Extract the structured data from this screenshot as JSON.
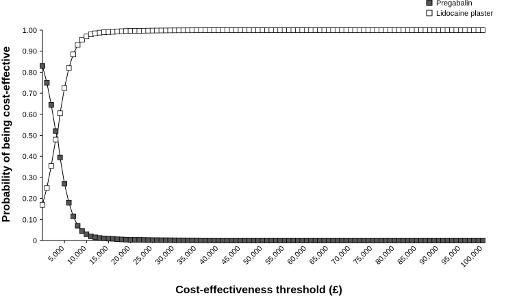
{
  "chart_data": {
    "type": "line",
    "title": "",
    "xlabel": "Cost-effectiveness threshold (£)",
    "ylabel": "Probability of being cost-effective",
    "xlim": [
      0,
      100000
    ],
    "ylim": [
      0,
      1
    ],
    "x_ticks": [
      5000,
      10000,
      15000,
      20000,
      25000,
      30000,
      35000,
      40000,
      45000,
      50000,
      55000,
      60000,
      65000,
      70000,
      75000,
      80000,
      85000,
      90000,
      95000,
      100000
    ],
    "x_tick_labels": [
      "5,000",
      "10,000",
      "15,000",
      "20,000",
      "25,000",
      "30,000",
      "35,000",
      "40,000",
      "45,000",
      "50,000",
      "55,000",
      "60,000",
      "65,000",
      "70,000",
      "75,000",
      "80,000",
      "85,000",
      "90,000",
      "95,000",
      "100,000"
    ],
    "y_ticks": [
      0,
      0.1,
      0.2,
      0.3,
      0.4,
      0.5,
      0.6,
      0.7,
      0.8,
      0.9,
      1.0
    ],
    "y_tick_labels": [
      "0",
      "0.10",
      "0.20",
      "0.30",
      "0.40",
      "0.50",
      "0.60",
      "0.70",
      "0.80",
      "0.90",
      "1.00"
    ],
    "grid": false,
    "legend_position": "top-right",
    "series": [
      {
        "name": "Pregabalin",
        "marker": "filled-square",
        "color": "#555555",
        "x": [
          0,
          1000,
          2000,
          3000,
          3500,
          4000,
          5000,
          6000,
          7000,
          8000,
          9000,
          10000,
          11000,
          12000,
          13000,
          14000,
          15000,
          16000,
          17000,
          18000,
          19000,
          20000,
          22000,
          25000,
          30000,
          40000,
          50000,
          60000,
          70000,
          80000,
          90000,
          100000
        ],
        "y": [
          0.83,
          0.75,
          0.645,
          0.52,
          0.48,
          0.395,
          0.27,
          0.18,
          0.115,
          0.07,
          0.045,
          0.03,
          0.02,
          0.015,
          0.012,
          0.01,
          0.009,
          0.008,
          0.006,
          0.005,
          0.004,
          0.003,
          0.003,
          0.002,
          0.001,
          0,
          0,
          0,
          0,
          0,
          0,
          0
        ]
      },
      {
        "name": "Lidocaine plaster",
        "marker": "open-square",
        "color": "#ffffff",
        "x": [
          0,
          1000,
          2000,
          3000,
          3500,
          4000,
          5000,
          6000,
          7000,
          8000,
          9000,
          10000,
          11000,
          12000,
          13000,
          14000,
          15000,
          16000,
          17000,
          18000,
          19000,
          20000,
          22000,
          25000,
          30000,
          40000,
          50000,
          60000,
          70000,
          80000,
          90000,
          100000
        ],
        "y": [
          0.17,
          0.25,
          0.355,
          0.48,
          0.52,
          0.605,
          0.725,
          0.82,
          0.885,
          0.93,
          0.955,
          0.97,
          0.98,
          0.985,
          0.988,
          0.99,
          0.991,
          0.992,
          0.994,
          0.995,
          0.996,
          0.997,
          0.997,
          0.998,
          0.999,
          1.0,
          1.0,
          1.0,
          1.0,
          1.0,
          1.0,
          1.0
        ]
      }
    ]
  }
}
